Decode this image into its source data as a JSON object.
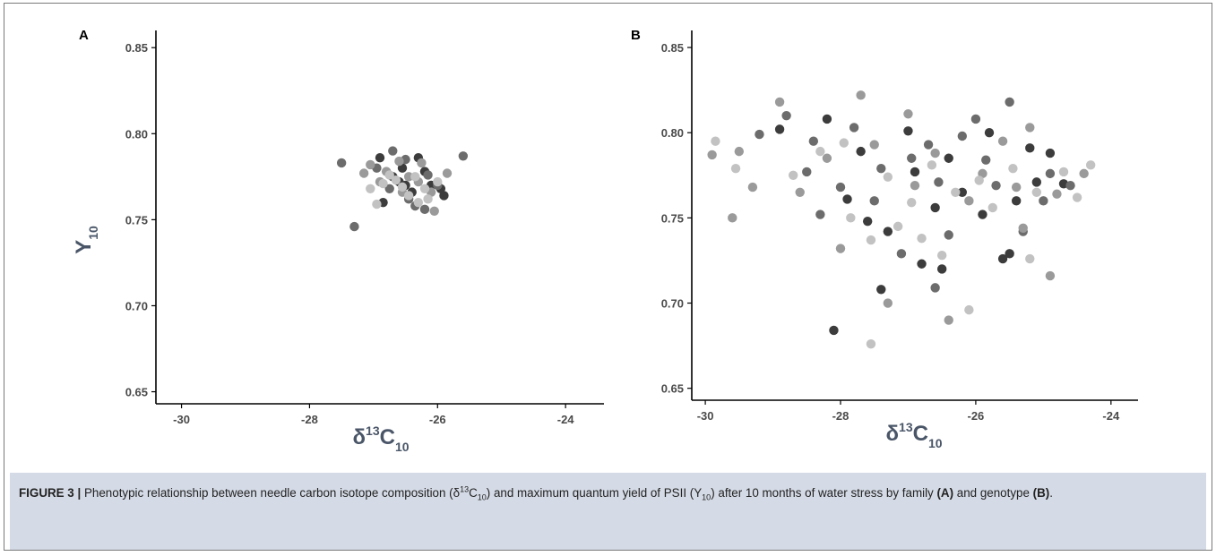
{
  "caption": {
    "label": "FIGURE 3 |",
    "text_1": "Phenotypic relationship between needle carbon isotope composition (δ",
    "sup_1": "13",
    "text_2": "C",
    "sub_1": "10",
    "text_3": ") and maximum quantum yield of PSII (Y",
    "sub_2": "10",
    "text_4": ") after 10 months of water stress by family ",
    "ref_a": "(A)",
    "text_5": " and genotype ",
    "ref_b": "(B)",
    "text_6": "."
  },
  "chart_data": [
    {
      "type": "scatter",
      "panel_label": "A",
      "xlabel": "δ13C10",
      "ylabel": "Y10",
      "xlim": [
        -30.4,
        -23.4
      ],
      "ylim": [
        0.643,
        0.86
      ],
      "x_ticks": [
        -30,
        -28,
        -26,
        -24
      ],
      "y_ticks": [
        0.65,
        0.7,
        0.75,
        0.8,
        0.85
      ],
      "x_tick_labels": [
        "-30",
        "-28",
        "-26",
        "-24"
      ],
      "y_tick_labels": [
        "0.65",
        "0.70",
        "0.75",
        "0.80",
        "0.85"
      ],
      "grid": false,
      "series": [
        {
          "color": "#3c3c3c",
          "points": [
            [
              -26.9,
              0.786
            ],
            [
              -26.7,
              0.775
            ],
            [
              -26.55,
              0.78
            ],
            [
              -26.3,
              0.786
            ],
            [
              -26.5,
              0.77
            ],
            [
              -26.2,
              0.778
            ],
            [
              -26.85,
              0.76
            ],
            [
              -25.9,
              0.764
            ],
            [
              -25.95,
              0.768
            ],
            [
              -26.6,
              0.772
            ],
            [
              -26.4,
              0.766
            ],
            [
              -26.1,
              0.77
            ]
          ]
        },
        {
          "color": "#6c6c6c",
          "points": [
            [
              -27.5,
              0.783
            ],
            [
              -27.3,
              0.746
            ],
            [
              -26.7,
              0.79
            ],
            [
              -26.5,
              0.785
            ],
            [
              -26.45,
              0.762
            ],
            [
              -26.2,
              0.756
            ],
            [
              -25.6,
              0.787
            ],
            [
              -26.95,
              0.78
            ],
            [
              -26.75,
              0.768
            ],
            [
              -26.15,
              0.776
            ],
            [
              -26.35,
              0.758
            ],
            [
              -26.0,
              0.77
            ]
          ]
        },
        {
          "color": "#9a9a9a",
          "points": [
            [
              -27.15,
              0.777
            ],
            [
              -26.9,
              0.772
            ],
            [
              -26.6,
              0.784
            ],
            [
              -26.3,
              0.772
            ],
            [
              -26.1,
              0.766
            ],
            [
              -25.85,
              0.777
            ],
            [
              -26.55,
              0.766
            ],
            [
              -26.8,
              0.778
            ],
            [
              -26.05,
              0.755
            ],
            [
              -27.05,
              0.782
            ],
            [
              -26.25,
              0.783
            ],
            [
              -26.45,
              0.775
            ]
          ]
        },
        {
          "color": "#c2c2c2",
          "points": [
            [
              -27.05,
              0.768
            ],
            [
              -26.95,
              0.759
            ],
            [
              -26.65,
              0.773
            ],
            [
              -26.45,
              0.764
            ],
            [
              -26.3,
              0.76
            ],
            [
              -26.2,
              0.768
            ],
            [
              -26.0,
              0.772
            ],
            [
              -26.75,
              0.776
            ],
            [
              -26.55,
              0.769
            ],
            [
              -26.35,
              0.775
            ],
            [
              -26.15,
              0.762
            ],
            [
              -26.85,
              0.771
            ]
          ]
        }
      ]
    },
    {
      "type": "scatter",
      "panel_label": "B",
      "xlabel": "δ13C10",
      "ylabel": "",
      "xlim": [
        -30.2,
        -23.6
      ],
      "ylim": [
        0.643,
        0.86
      ],
      "x_ticks": [
        -30,
        -28,
        -26,
        -24
      ],
      "y_ticks": [
        0.65,
        0.7,
        0.75,
        0.8,
        0.85
      ],
      "x_tick_labels": [
        "-30",
        "-28",
        "-26",
        "-24"
      ],
      "y_tick_labels": [
        "0.65",
        "0.70",
        "0.75",
        "0.80",
        "0.85"
      ],
      "grid": false,
      "series": [
        {
          "color": "#3c3c3c",
          "points": [
            [
              -28.1,
              0.684
            ],
            [
              -27.4,
              0.708
            ],
            [
              -25.6,
              0.726
            ],
            [
              -25.5,
              0.729
            ],
            [
              -26.5,
              0.72
            ],
            [
              -26.8,
              0.723
            ],
            [
              -28.9,
              0.802
            ],
            [
              -28.2,
              0.808
            ],
            [
              -27.9,
              0.761
            ],
            [
              -27.6,
              0.748
            ],
            [
              -27.0,
              0.801
            ],
            [
              -26.4,
              0.785
            ],
            [
              -25.9,
              0.752
            ],
            [
              -25.2,
              0.791
            ],
            [
              -24.7,
              0.77
            ],
            [
              -25.8,
              0.8
            ],
            [
              -26.2,
              0.765
            ],
            [
              -27.3,
              0.742
            ],
            [
              -26.9,
              0.777
            ],
            [
              -25.4,
              0.76
            ],
            [
              -24.9,
              0.788
            ],
            [
              -25.1,
              0.771
            ],
            [
              -26.6,
              0.756
            ],
            [
              -27.7,
              0.789
            ]
          ]
        },
        {
          "color": "#6c6c6c",
          "points": [
            [
              -29.2,
              0.799
            ],
            [
              -28.8,
              0.81
            ],
            [
              -28.5,
              0.777
            ],
            [
              -28.4,
              0.795
            ],
            [
              -27.5,
              0.76
            ],
            [
              -27.1,
              0.729
            ],
            [
              -26.6,
              0.709
            ],
            [
              -26.0,
              0.808
            ],
            [
              -25.3,
              0.742
            ],
            [
              -25.5,
              0.818
            ],
            [
              -24.9,
              0.776
            ],
            [
              -26.4,
              0.74
            ],
            [
              -26.95,
              0.785
            ],
            [
              -27.8,
              0.803
            ],
            [
              -28.0,
              0.768
            ],
            [
              -26.7,
              0.793
            ],
            [
              -25.7,
              0.769
            ],
            [
              -25.0,
              0.76
            ],
            [
              -26.2,
              0.798
            ],
            [
              -27.4,
              0.779
            ],
            [
              -28.3,
              0.752
            ],
            [
              -25.85,
              0.784
            ],
            [
              -26.55,
              0.771
            ],
            [
              -24.6,
              0.769
            ]
          ]
        },
        {
          "color": "#9a9a9a",
          "points": [
            [
              -29.9,
              0.787
            ],
            [
              -29.5,
              0.789
            ],
            [
              -29.6,
              0.75
            ],
            [
              -29.3,
              0.768
            ],
            [
              -28.9,
              0.818
            ],
            [
              -28.6,
              0.765
            ],
            [
              -28.0,
              0.732
            ],
            [
              -27.7,
              0.822
            ],
            [
              -27.3,
              0.7
            ],
            [
              -26.9,
              0.769
            ],
            [
              -26.6,
              0.788
            ],
            [
              -26.4,
              0.69
            ],
            [
              -25.9,
              0.776
            ],
            [
              -25.6,
              0.795
            ],
            [
              -25.2,
              0.803
            ],
            [
              -24.8,
              0.764
            ],
            [
              -24.4,
              0.776
            ],
            [
              -24.9,
              0.716
            ],
            [
              -25.3,
              0.744
            ],
            [
              -27.5,
              0.793
            ],
            [
              -28.2,
              0.785
            ],
            [
              -26.1,
              0.76
            ],
            [
              -27.0,
              0.811
            ],
            [
              -25.4,
              0.768
            ]
          ]
        },
        {
          "color": "#c2c2c2",
          "points": [
            [
              -29.85,
              0.795
            ],
            [
              -29.55,
              0.779
            ],
            [
              -28.7,
              0.775
            ],
            [
              -27.85,
              0.75
            ],
            [
              -27.55,
              0.676
            ],
            [
              -27.15,
              0.745
            ],
            [
              -26.1,
              0.696
            ],
            [
              -26.5,
              0.728
            ],
            [
              -25.2,
              0.726
            ],
            [
              -24.3,
              0.781
            ],
            [
              -24.5,
              0.762
            ],
            [
              -26.8,
              0.738
            ],
            [
              -27.3,
              0.774
            ],
            [
              -26.3,
              0.765
            ],
            [
              -25.75,
              0.756
            ],
            [
              -26.95,
              0.759
            ],
            [
              -25.45,
              0.779
            ],
            [
              -27.95,
              0.794
            ],
            [
              -26.65,
              0.781
            ],
            [
              -25.95,
              0.772
            ],
            [
              -27.55,
              0.737
            ],
            [
              -24.7,
              0.777
            ],
            [
              -28.3,
              0.789
            ],
            [
              -25.1,
              0.765
            ]
          ]
        }
      ]
    }
  ]
}
